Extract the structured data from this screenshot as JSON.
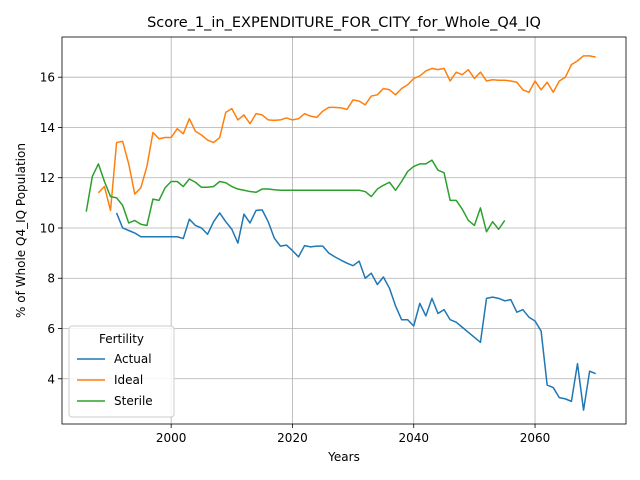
{
  "chart_data": {
    "type": "line",
    "title": "Score_1_in_EXPENDITURE_FOR_CITY_for_Whole_Q4_IQ",
    "xlabel": "Years",
    "ylabel": "% of Whole Q4_IQ Population",
    "xlim": [
      1982,
      2075
    ],
    "ylim": [
      2.2,
      17.6
    ],
    "xticks": [
      2000,
      2020,
      2040,
      2060
    ],
    "yticks": [
      4,
      6,
      8,
      10,
      12,
      14,
      16
    ],
    "grid": true,
    "legend": {
      "title": "Fertility",
      "position": "lower-left"
    },
    "series": [
      {
        "name": "Actual",
        "color": "#1f77b4",
        "points": [
          [
            1991,
            10.6
          ],
          [
            1992,
            10.0
          ],
          [
            1993,
            9.9
          ],
          [
            1994,
            9.8
          ],
          [
            1995,
            9.65
          ],
          [
            1996,
            9.65
          ],
          [
            1997,
            9.65
          ],
          [
            1998,
            9.65
          ],
          [
            1999,
            9.65
          ],
          [
            2000,
            9.65
          ],
          [
            2001,
            9.65
          ],
          [
            2002,
            9.58
          ],
          [
            2003,
            10.35
          ],
          [
            2004,
            10.1
          ],
          [
            2005,
            10.0
          ],
          [
            2006,
            9.75
          ],
          [
            2007,
            10.25
          ],
          [
            2008,
            10.6
          ],
          [
            2009,
            10.25
          ],
          [
            2010,
            9.95
          ],
          [
            2011,
            9.4
          ],
          [
            2012,
            10.55
          ],
          [
            2013,
            10.2
          ],
          [
            2014,
            10.7
          ],
          [
            2015,
            10.72
          ],
          [
            2016,
            10.25
          ],
          [
            2017,
            9.6
          ],
          [
            2018,
            9.28
          ],
          [
            2019,
            9.32
          ],
          [
            2020,
            9.1
          ],
          [
            2021,
            8.85
          ],
          [
            2022,
            9.3
          ],
          [
            2023,
            9.25
          ],
          [
            2024,
            9.28
          ],
          [
            2025,
            9.28
          ],
          [
            2026,
            9.0
          ],
          [
            2027,
            8.85
          ],
          [
            2028,
            8.72
          ],
          [
            2029,
            8.6
          ],
          [
            2030,
            8.5
          ],
          [
            2031,
            8.68
          ],
          [
            2032,
            8.0
          ],
          [
            2033,
            8.2
          ],
          [
            2034,
            7.75
          ],
          [
            2035,
            8.05
          ],
          [
            2036,
            7.6
          ],
          [
            2037,
            6.9
          ],
          [
            2038,
            6.35
          ],
          [
            2039,
            6.35
          ],
          [
            2040,
            6.1
          ],
          [
            2041,
            7.0
          ],
          [
            2042,
            6.5
          ],
          [
            2043,
            7.2
          ],
          [
            2044,
            6.6
          ],
          [
            2045,
            6.75
          ],
          [
            2046,
            6.35
          ],
          [
            2047,
            6.25
          ],
          [
            2048,
            6.05
          ],
          [
            2049,
            5.85
          ],
          [
            2050,
            5.65
          ],
          [
            2051,
            5.45
          ],
          [
            2052,
            7.2
          ],
          [
            2053,
            7.25
          ],
          [
            2054,
            7.2
          ],
          [
            2055,
            7.1
          ],
          [
            2056,
            7.15
          ],
          [
            2057,
            6.65
          ],
          [
            2058,
            6.75
          ],
          [
            2059,
            6.45
          ],
          [
            2060,
            6.3
          ],
          [
            2061,
            5.9
          ],
          [
            2062,
            3.75
          ],
          [
            2063,
            3.65
          ],
          [
            2064,
            3.25
          ],
          [
            2065,
            3.2
          ],
          [
            2066,
            3.1
          ],
          [
            2067,
            4.6
          ],
          [
            2068,
            2.75
          ],
          [
            2069,
            4.3
          ],
          [
            2070,
            4.2
          ]
        ]
      },
      {
        "name": "Ideal",
        "color": "#ff7f0e",
        "points": [
          [
            1988,
            11.4
          ],
          [
            1989,
            11.65
          ],
          [
            1990,
            10.7
          ],
          [
            1991,
            13.4
          ],
          [
            1992,
            13.45
          ],
          [
            1993,
            12.55
          ],
          [
            1994,
            11.35
          ],
          [
            1995,
            11.6
          ],
          [
            1996,
            12.45
          ],
          [
            1997,
            13.8
          ],
          [
            1998,
            13.55
          ],
          [
            1999,
            13.6
          ],
          [
            2000,
            13.6
          ],
          [
            2001,
            13.95
          ],
          [
            2002,
            13.75
          ],
          [
            2003,
            14.35
          ],
          [
            2004,
            13.85
          ],
          [
            2005,
            13.7
          ],
          [
            2006,
            13.5
          ],
          [
            2007,
            13.4
          ],
          [
            2008,
            13.6
          ],
          [
            2009,
            14.6
          ],
          [
            2010,
            14.75
          ],
          [
            2011,
            14.3
          ],
          [
            2012,
            14.5
          ],
          [
            2013,
            14.15
          ],
          [
            2014,
            14.55
          ],
          [
            2015,
            14.5
          ],
          [
            2016,
            14.3
          ],
          [
            2017,
            14.28
          ],
          [
            2018,
            14.3
          ],
          [
            2019,
            14.38
          ],
          [
            2020,
            14.3
          ],
          [
            2021,
            14.35
          ],
          [
            2022,
            14.55
          ],
          [
            2023,
            14.45
          ],
          [
            2024,
            14.4
          ],
          [
            2025,
            14.65
          ],
          [
            2026,
            14.8
          ],
          [
            2027,
            14.8
          ],
          [
            2028,
            14.78
          ],
          [
            2029,
            14.72
          ],
          [
            2030,
            15.1
          ],
          [
            2031,
            15.05
          ],
          [
            2032,
            14.9
          ],
          [
            2033,
            15.25
          ],
          [
            2034,
            15.3
          ],
          [
            2035,
            15.55
          ],
          [
            2036,
            15.5
          ],
          [
            2037,
            15.3
          ],
          [
            2038,
            15.55
          ],
          [
            2039,
            15.7
          ],
          [
            2040,
            15.95
          ],
          [
            2041,
            16.05
          ],
          [
            2042,
            16.25
          ],
          [
            2043,
            16.35
          ],
          [
            2044,
            16.3
          ],
          [
            2045,
            16.35
          ],
          [
            2046,
            15.85
          ],
          [
            2047,
            16.2
          ],
          [
            2048,
            16.1
          ],
          [
            2049,
            16.3
          ],
          [
            2050,
            15.95
          ],
          [
            2051,
            16.2
          ],
          [
            2052,
            15.85
          ],
          [
            2053,
            15.9
          ],
          [
            2054,
            15.88
          ],
          [
            2055,
            15.88
          ],
          [
            2056,
            15.85
          ],
          [
            2057,
            15.8
          ],
          [
            2058,
            15.5
          ],
          [
            2059,
            15.4
          ],
          [
            2060,
            15.85
          ],
          [
            2061,
            15.5
          ],
          [
            2062,
            15.8
          ],
          [
            2063,
            15.4
          ],
          [
            2064,
            15.85
          ],
          [
            2065,
            16.0
          ],
          [
            2066,
            16.5
          ],
          [
            2067,
            16.65
          ],
          [
            2068,
            16.85
          ],
          [
            2069,
            16.85
          ],
          [
            2070,
            16.8
          ]
        ]
      },
      {
        "name": "Sterile",
        "color": "#2ca02c",
        "points": [
          [
            1986,
            10.65
          ],
          [
            1987,
            12.05
          ],
          [
            1988,
            12.55
          ],
          [
            1989,
            11.85
          ],
          [
            1990,
            11.25
          ],
          [
            1991,
            11.2
          ],
          [
            1992,
            10.9
          ],
          [
            1993,
            10.2
          ],
          [
            1994,
            10.3
          ],
          [
            1995,
            10.15
          ],
          [
            1996,
            10.1
          ],
          [
            1997,
            11.15
          ],
          [
            1998,
            11.1
          ],
          [
            1999,
            11.6
          ],
          [
            2000,
            11.85
          ],
          [
            2001,
            11.85
          ],
          [
            2002,
            11.65
          ],
          [
            2003,
            11.95
          ],
          [
            2004,
            11.82
          ],
          [
            2005,
            11.62
          ],
          [
            2006,
            11.62
          ],
          [
            2007,
            11.65
          ],
          [
            2008,
            11.85
          ],
          [
            2009,
            11.8
          ],
          [
            2010,
            11.65
          ],
          [
            2011,
            11.55
          ],
          [
            2012,
            11.5
          ],
          [
            2013,
            11.45
          ],
          [
            2014,
            11.42
          ],
          [
            2015,
            11.55
          ],
          [
            2016,
            11.55
          ],
          [
            2017,
            11.52
          ],
          [
            2018,
            11.5
          ],
          [
            2019,
            11.5
          ],
          [
            2020,
            11.5
          ],
          [
            2021,
            11.5
          ],
          [
            2022,
            11.5
          ],
          [
            2023,
            11.5
          ],
          [
            2024,
            11.5
          ],
          [
            2025,
            11.5
          ],
          [
            2026,
            11.5
          ],
          [
            2027,
            11.5
          ],
          [
            2028,
            11.5
          ],
          [
            2029,
            11.5
          ],
          [
            2030,
            11.5
          ],
          [
            2031,
            11.5
          ],
          [
            2032,
            11.45
          ],
          [
            2033,
            11.25
          ],
          [
            2034,
            11.55
          ],
          [
            2035,
            11.7
          ],
          [
            2036,
            11.82
          ],
          [
            2037,
            11.5
          ],
          [
            2038,
            11.85
          ],
          [
            2039,
            12.25
          ],
          [
            2040,
            12.45
          ],
          [
            2041,
            12.55
          ],
          [
            2042,
            12.55
          ],
          [
            2043,
            12.7
          ],
          [
            2044,
            12.3
          ],
          [
            2045,
            12.2
          ],
          [
            2046,
            11.1
          ],
          [
            2047,
            11.1
          ],
          [
            2048,
            10.75
          ],
          [
            2049,
            10.3
          ],
          [
            2050,
            10.1
          ],
          [
            2051,
            10.8
          ],
          [
            2052,
            9.85
          ],
          [
            2053,
            10.25
          ],
          [
            2054,
            9.95
          ],
          [
            2055,
            10.3
          ]
        ]
      }
    ]
  }
}
